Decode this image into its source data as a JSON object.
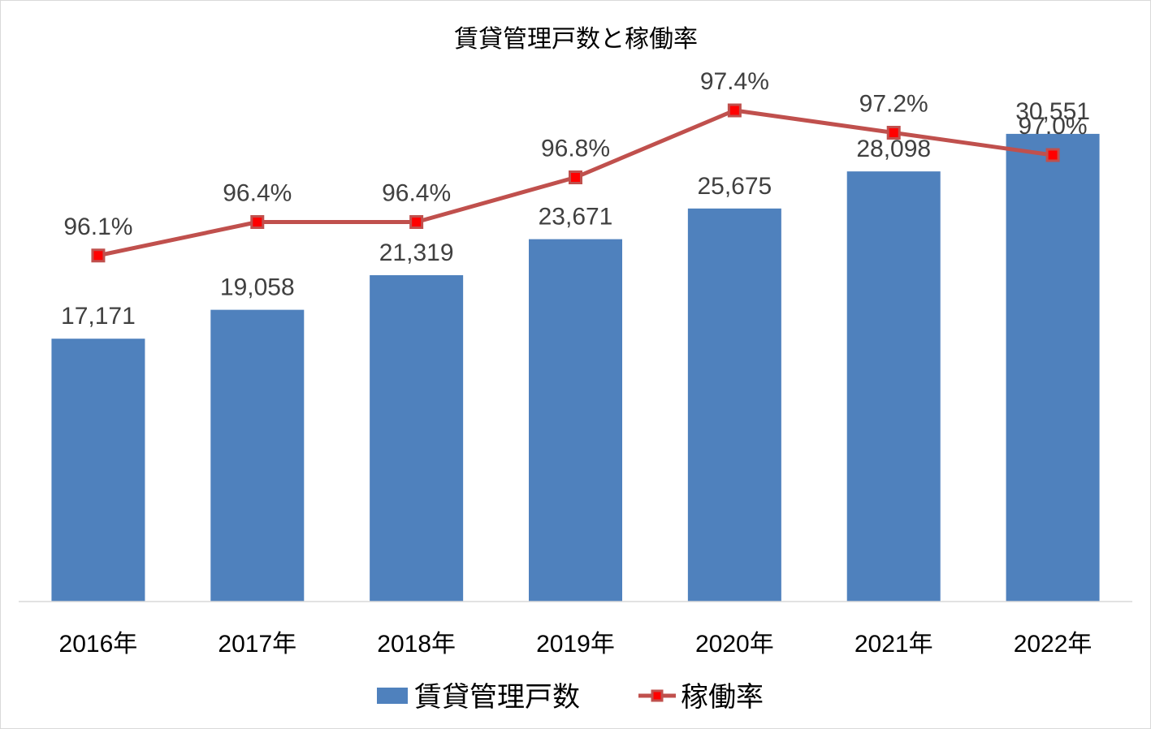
{
  "chart_data": {
    "type": "bar",
    "title": "賃貸管理戸数と稼働率",
    "categories": [
      "2016年",
      "2017年",
      "2018年",
      "2019年",
      "2020年",
      "2021年",
      "2022年"
    ],
    "series": [
      {
        "name": "賃貸管理戸数",
        "type": "bar",
        "color": "#4f81bd",
        "values": [
          17171,
          19058,
          21319,
          23671,
          25675,
          28098,
          30551
        ],
        "labels": [
          "17,171",
          "19,058",
          "21,319",
          "23,671",
          "25,675",
          "28,098",
          "30,551"
        ]
      },
      {
        "name": "稼働率",
        "type": "line",
        "color": "#c0504d",
        "marker_fill": "#ff0000",
        "values": [
          96.1,
          96.4,
          96.4,
          96.8,
          97.4,
          97.2,
          97.0
        ],
        "labels": [
          "96.1%",
          "96.4%",
          "96.4%",
          "96.8%",
          "97.4%",
          "97.2%",
          "97.0%"
        ]
      }
    ],
    "y_primary_range": [
      0,
      35000
    ],
    "y_secondary_range": [
      93.0,
      97.8
    ],
    "grid": false,
    "legend_position": "bottom"
  }
}
